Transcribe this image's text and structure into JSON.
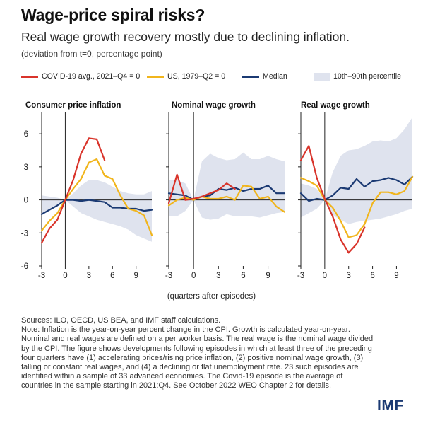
{
  "header": {
    "title": "Wage-price spiral risks?",
    "subtitle": "Real wage growth recovery mostly due to declining inflation.",
    "units": "(deviation from t=0, percentage point)"
  },
  "legend": [
    {
      "label": "COVID-19 avg., 2021–Q4 = 0",
      "color": "#d9342b",
      "kind": "line"
    },
    {
      "label": "US, 1979–Q2 = 0",
      "color": "#f1b51c",
      "kind": "line"
    },
    {
      "label": "Median",
      "color": "#1b3a73",
      "kind": "line"
    },
    {
      "label": "10th–90th percentile",
      "color": "#dfe3ee",
      "kind": "band"
    }
  ],
  "x_caption": "(quarters after episodes)",
  "notes": {
    "sources": "Sources: ILO, OECD, US BEA, and IMF staff calculations.",
    "note": "Note: Inflation is the year-on-year percent change in the CPI. Growth is calculated year-on-year. Nominal and real wages are defined on a per worker basis. The real wage is the nominal wage divided by the CPI. The figure shows developments following episodes in which at least three of the preceding four quarters have (1) accelerating prices/rising price inflation, (2) positive nominal wage growth, (3) falling or constant real wages, and (4) a declining or flat unemployment rate. 23 such episodes are identified within a sample of 33 advanced economies. The Covid-19 episode is the average of countries in the sample starting in 2021:Q4. See October 2022 WEO Chapter 2 for details."
  },
  "logo_text": "IMF",
  "chart_data": [
    {
      "type": "line",
      "title": "Consumer price inflation",
      "x": [
        -3,
        -2,
        -1,
        0,
        1,
        2,
        3,
        4,
        5,
        6,
        7,
        8,
        9,
        10,
        11
      ],
      "xlim": [
        -3,
        11
      ],
      "ylim": [
        -6,
        8
      ],
      "xticks": [
        -3,
        0,
        3,
        6,
        9
      ],
      "yticks": [
        -6,
        -3,
        0,
        3,
        6
      ],
      "ytick_labels": [
        "-6",
        "-3",
        "0",
        "3",
        "6"
      ],
      "band_low": [
        -1.4,
        -1.0,
        -0.6,
        0,
        -0.6,
        -1.2,
        -1.5,
        -1.8,
        -2.0,
        -2.2,
        -2.4,
        -2.7,
        -3.2,
        -3.5,
        -3.8
      ],
      "band_high": [
        0.4,
        0.3,
        0.2,
        0,
        0.6,
        1.3,
        1.8,
        1.8,
        1.6,
        1.2,
        0.8,
        0.6,
        0.5,
        0.5,
        0.8
      ],
      "series": [
        {
          "name": "COVID-19 avg., 2021–Q4 = 0",
          "color": "#d9342b",
          "x": [
            -3,
            -2,
            -1,
            0,
            1,
            2,
            3,
            4,
            5
          ],
          "values": [
            -3.9,
            -2.6,
            -1.8,
            0,
            1.8,
            4.2,
            5.6,
            5.5,
            3.6
          ]
        },
        {
          "name": "US, 1979–Q2 = 0",
          "color": "#f1b51c",
          "x": [
            -3,
            -2,
            -1,
            0,
            1,
            2,
            3,
            4,
            5,
            6,
            7,
            8,
            9,
            10,
            11
          ],
          "values": [
            -2.8,
            -1.9,
            -1.2,
            0,
            1.0,
            1.9,
            3.4,
            3.7,
            2.2,
            1.9,
            0.4,
            -0.8,
            -1.0,
            -1.4,
            -3.2
          ]
        },
        {
          "name": "Median",
          "color": "#1b3a73",
          "x": [
            -3,
            -2,
            -1,
            0,
            1,
            2,
            3,
            4,
            5,
            6,
            7,
            8,
            9,
            10,
            11
          ],
          "values": [
            -1.3,
            -0.9,
            -0.5,
            0,
            0,
            -0.1,
            0,
            -0.1,
            -0.2,
            -0.7,
            -0.7,
            -0.8,
            -0.8,
            -1.0,
            -0.9
          ]
        }
      ]
    },
    {
      "type": "line",
      "title": "Nominal wage growth",
      "x": [
        -3,
        -2,
        -1,
        0,
        1,
        2,
        3,
        4,
        5,
        6,
        7,
        8,
        9,
        10,
        11
      ],
      "xlim": [
        -3,
        11
      ],
      "ylim": [
        -6,
        8
      ],
      "xticks": [
        -3,
        0,
        3,
        6,
        9
      ],
      "yticks": [
        -6,
        -3,
        0,
        3,
        6
      ],
      "band_low": [
        -1.5,
        -1.5,
        -1.0,
        0,
        -1.6,
        -1.8,
        -1.7,
        -1.3,
        -1.5,
        -1.5,
        -1.5,
        -1.6,
        -1.4,
        -1.2,
        -1.1
      ],
      "band_high": [
        1.8,
        1.8,
        1.5,
        0,
        3.5,
        4.2,
        3.8,
        3.6,
        3.7,
        4.3,
        3.7,
        3.7,
        4.0,
        3.7,
        3.5
      ],
      "series": [
        {
          "name": "COVID-19 avg., 2021–Q4 = 0",
          "color": "#d9342b",
          "x": [
            -3,
            -2,
            -1,
            0,
            1,
            2,
            3,
            4,
            5
          ],
          "values": [
            -0.3,
            2.3,
            0,
            0.1,
            0.3,
            0.6,
            0.9,
            1.5,
            1.0
          ]
        },
        {
          "name": "US, 1979–Q2 = 0",
          "color": "#f1b51c",
          "x": [
            -3,
            -2,
            -1,
            0,
            1,
            2,
            3,
            4,
            5,
            6,
            7,
            8,
            9,
            10,
            11
          ],
          "values": [
            -0.5,
            0,
            0.2,
            0,
            0.3,
            0.1,
            0.1,
            0.3,
            0,
            1.3,
            1.2,
            0.1,
            0.3,
            -0.6,
            -1.1
          ]
        },
        {
          "name": "Median",
          "color": "#1b3a73",
          "x": [
            -3,
            -2,
            -1,
            0,
            1,
            2,
            3,
            4,
            5,
            6,
            7,
            8,
            9,
            10,
            11
          ],
          "values": [
            0.6,
            0.5,
            0.4,
            0,
            0.3,
            0.4,
            1.0,
            0.9,
            1.1,
            0.8,
            1.0,
            1.0,
            1.3,
            0.6,
            0.6
          ]
        }
      ]
    },
    {
      "type": "line",
      "title": "Real wage growth",
      "x": [
        -3,
        -2,
        -1,
        0,
        1,
        2,
        3,
        4,
        5,
        6,
        7,
        8,
        9,
        10,
        11
      ],
      "xlim": [
        -3,
        11
      ],
      "ylim": [
        -6,
        8
      ],
      "xticks": [
        -3,
        0,
        3,
        6,
        9
      ],
      "yticks": [
        -6,
        -3,
        0,
        3,
        6
      ],
      "band_low": [
        -1.6,
        -1.2,
        -0.8,
        0,
        -1.4,
        -1.8,
        -2.2,
        -2.0,
        -1.9,
        -1.8,
        -1.7,
        -1.5,
        -1.3,
        -1.0,
        -0.8
      ],
      "band_high": [
        1.5,
        1.3,
        1.0,
        0,
        2.5,
        4.0,
        4.5,
        4.6,
        4.9,
        5.3,
        5.4,
        5.3,
        5.6,
        6.4,
        7.5
      ],
      "series": [
        {
          "name": "COVID-19 avg., 2021–Q4 = 0",
          "color": "#d9342b",
          "x": [
            -3,
            -2,
            -1,
            0,
            1,
            2,
            3,
            4,
            5
          ],
          "values": [
            3.6,
            4.9,
            2.0,
            0.1,
            -1.5,
            -3.6,
            -4.8,
            -4.0,
            -2.5
          ]
        },
        {
          "name": "US, 1979–Q2 = 0",
          "color": "#f1b51c",
          "x": [
            -3,
            -2,
            -1,
            0,
            1,
            2,
            3,
            4,
            5,
            6,
            7,
            8,
            9,
            10,
            11
          ],
          "values": [
            2.0,
            1.7,
            1.3,
            0,
            -0.7,
            -1.9,
            -3.4,
            -3.2,
            -2.2,
            -0.3,
            0.7,
            0.7,
            0.5,
            0.8,
            2.1
          ]
        },
        {
          "name": "Median",
          "color": "#1b3a73",
          "x": [
            -3,
            -2,
            -1,
            0,
            1,
            2,
            3,
            4,
            5,
            6,
            7,
            8,
            9,
            10,
            11
          ],
          "values": [
            0.6,
            -0.1,
            0.1,
            0,
            0.4,
            1.1,
            1.0,
            1.9,
            1.2,
            1.7,
            1.8,
            2.0,
            1.8,
            1.4,
            2.1
          ]
        }
      ]
    }
  ]
}
